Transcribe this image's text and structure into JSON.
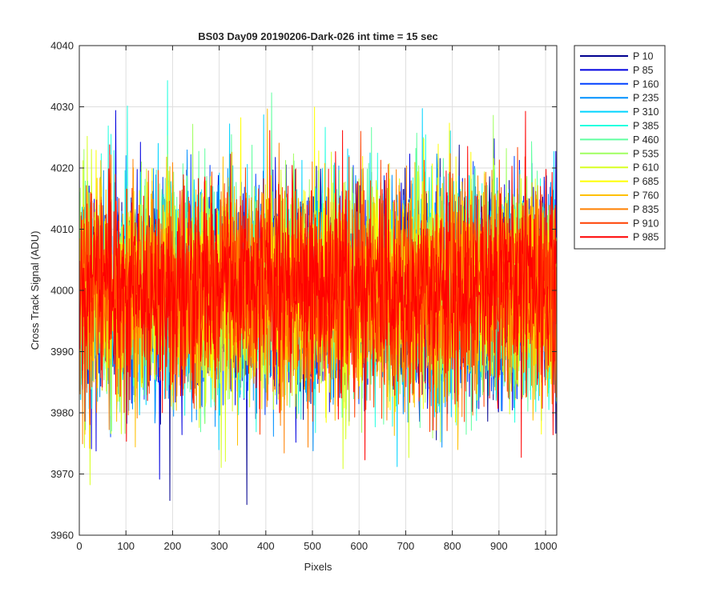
{
  "chart_data": {
    "type": "line",
    "title": "BS03 Day09 20190206-Dark-026 int time = 15 sec",
    "xlabel": "Pixels",
    "ylabel": "Cross Track Signal (ADU)",
    "xlim": [
      0,
      1024
    ],
    "ylim": [
      3960,
      4040
    ],
    "xticks": [
      0,
      100,
      200,
      300,
      400,
      500,
      600,
      700,
      800,
      900,
      1000
    ],
    "yticks": [
      3960,
      3970,
      3980,
      3990,
      4000,
      4010,
      4020,
      4030,
      4040
    ],
    "grid": true,
    "legend_position": "outside-top-right",
    "noise_model": {
      "mean": 4000,
      "std": 8.5,
      "min": 3965,
      "max": 4040,
      "n_points": 1024
    },
    "series": [
      {
        "name": "P 10",
        "color": "#00008f"
      },
      {
        "name": "P 85",
        "color": "#0000e0"
      },
      {
        "name": "P 160",
        "color": "#0040ff"
      },
      {
        "name": "P 235",
        "color": "#0090ff"
      },
      {
        "name": "P 310",
        "color": "#00d4ff"
      },
      {
        "name": "P 385",
        "color": "#20ffe0"
      },
      {
        "name": "P 460",
        "color": "#60ffa0"
      },
      {
        "name": "P 535",
        "color": "#a0ff60"
      },
      {
        "name": "P 610",
        "color": "#d8ff20"
      },
      {
        "name": "P 685",
        "color": "#ffff00"
      },
      {
        "name": "P 760",
        "color": "#ffc000"
      },
      {
        "name": "P 835",
        "color": "#ff8000"
      },
      {
        "name": "P 910",
        "color": "#ff4000"
      },
      {
        "name": "P 985",
        "color": "#ff0000"
      }
    ]
  }
}
